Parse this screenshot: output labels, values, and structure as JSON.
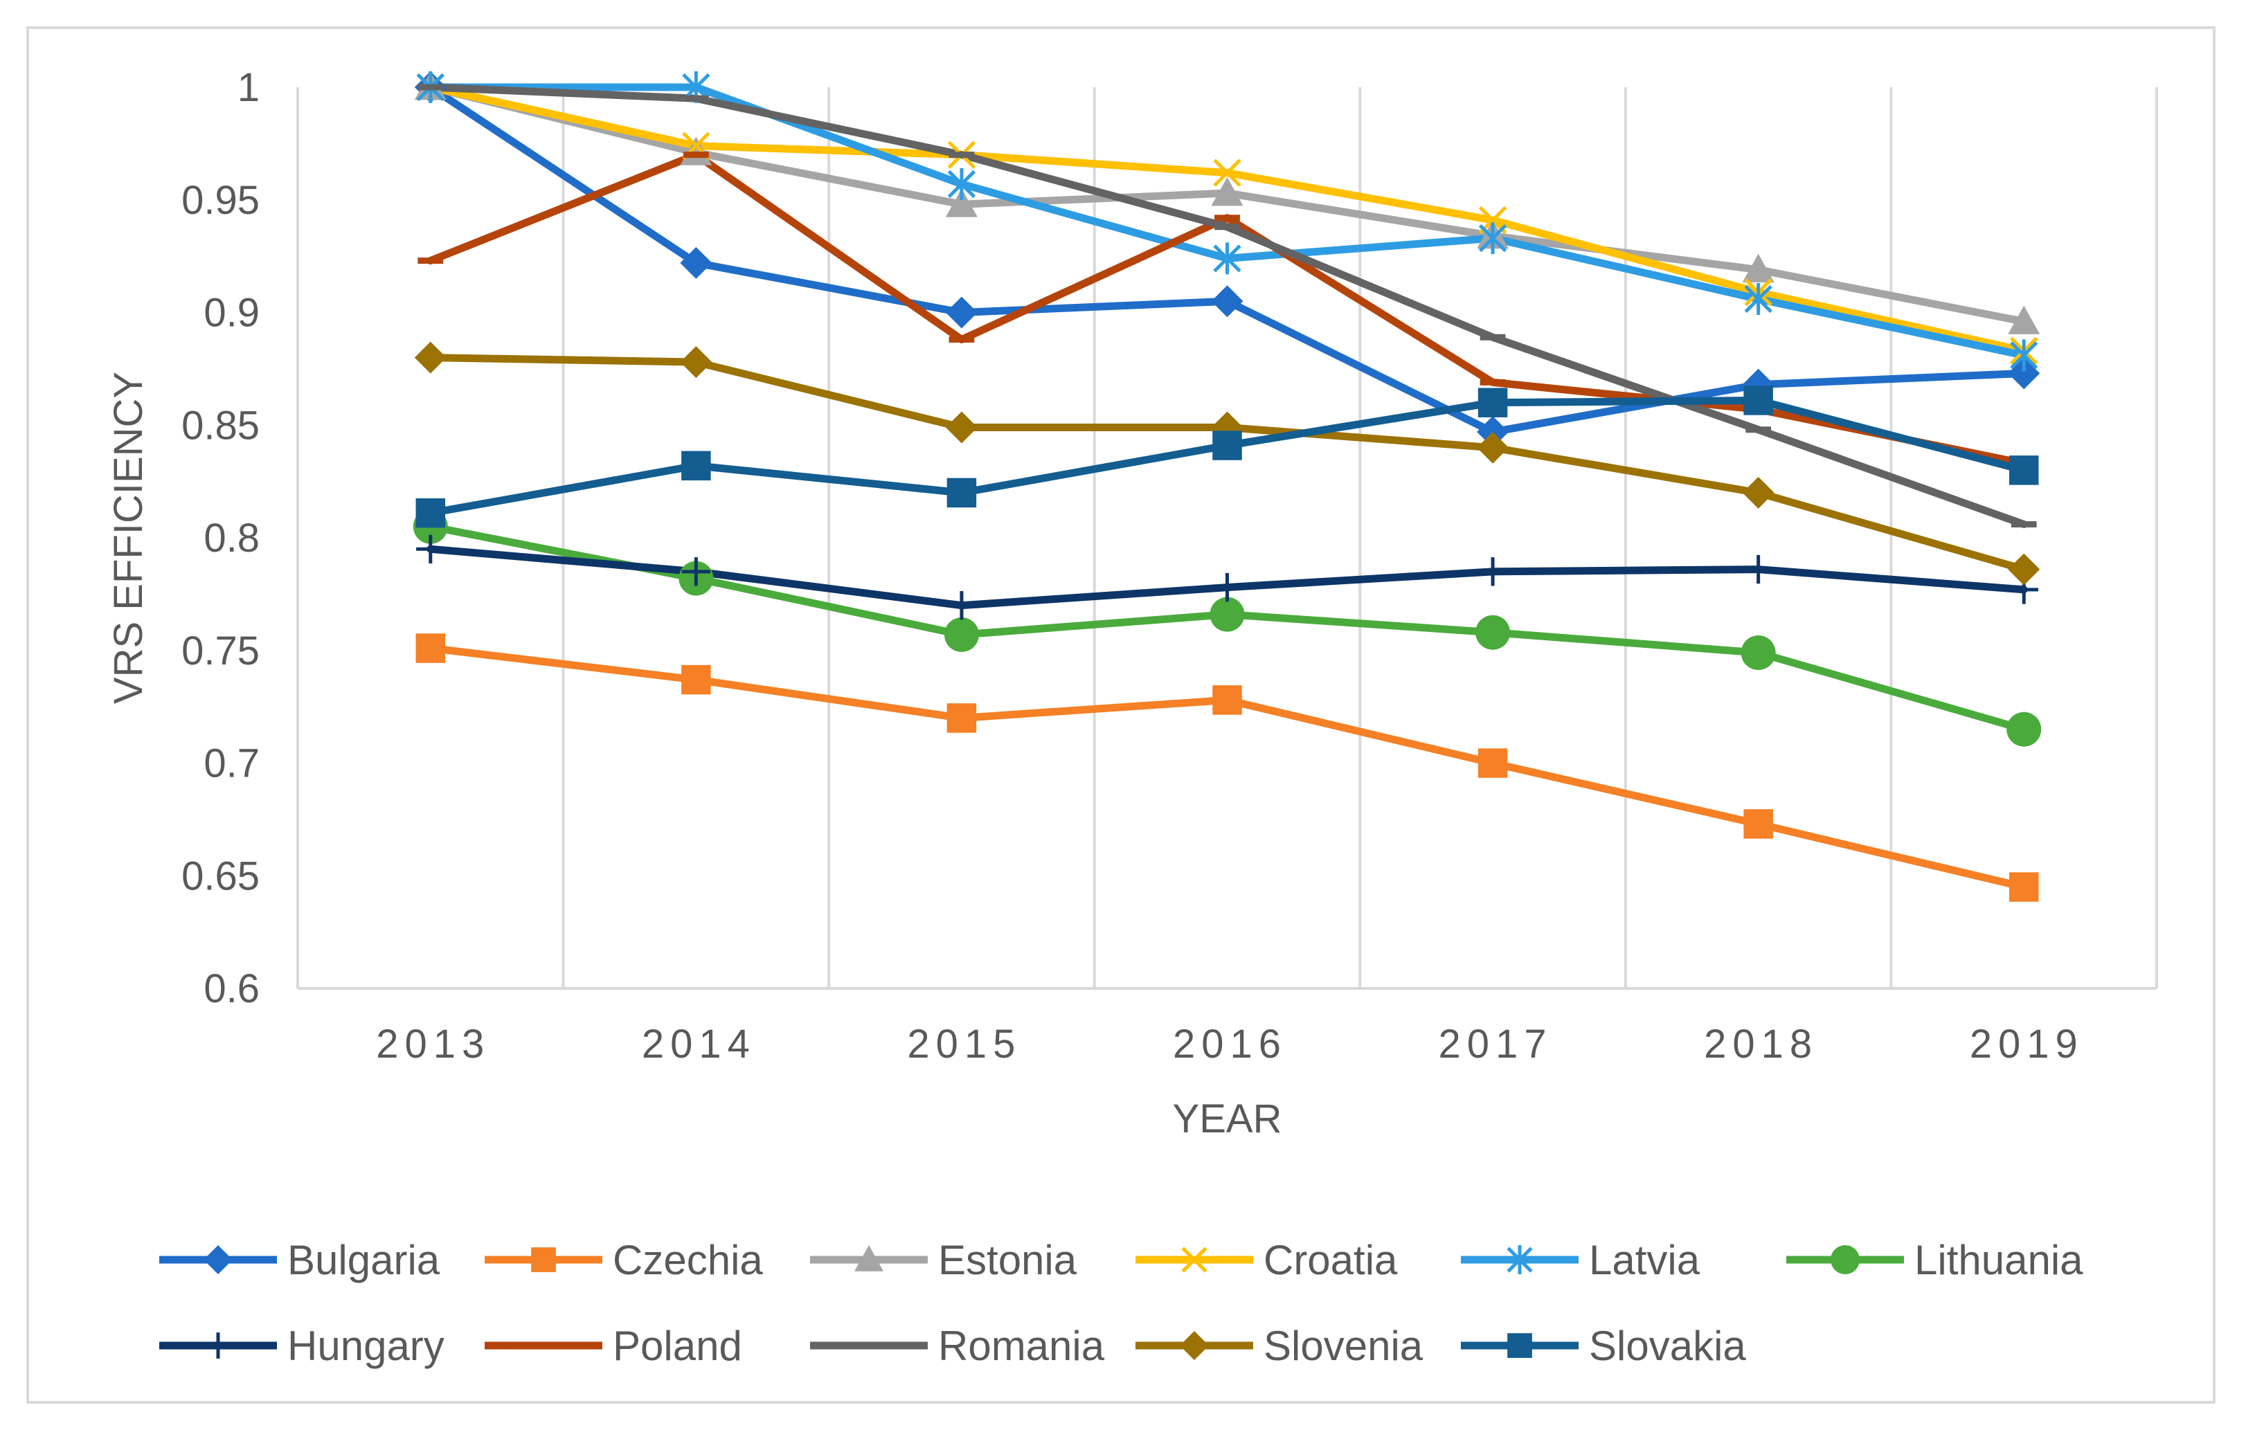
{
  "chart_data": {
    "type": "line",
    "title": "",
    "xlabel": "YEAR",
    "ylabel": "VRS EFFICIENCY",
    "ylim": [
      0.6,
      1.0
    ],
    "yticks": [
      "0.6",
      "0.65",
      "0.7",
      "0.75",
      "0.8",
      "0.85",
      "0.9",
      "0.95",
      "1"
    ],
    "categories": [
      "2013",
      "2014",
      "2015",
      "2016",
      "2017",
      "2018",
      "2019"
    ],
    "grid": "vertical",
    "legend_position": "bottom",
    "series": [
      {
        "name": "Bulgaria",
        "color": "#1f6dc8",
        "marker": "diamond",
        "values": [
          1.0,
          0.922,
          0.9,
          0.905,
          0.847,
          0.868,
          0.873
        ]
      },
      {
        "name": "Czechia",
        "color": "#f58025",
        "marker": "square",
        "values": [
          0.751,
          0.737,
          0.72,
          0.728,
          0.7,
          0.673,
          0.645
        ]
      },
      {
        "name": "Estonia",
        "color": "#a5a5a5",
        "marker": "triangle",
        "values": [
          1.0,
          0.971,
          0.948,
          0.953,
          0.934,
          0.919,
          0.896
        ]
      },
      {
        "name": "Croatia",
        "color": "#ffc000",
        "marker": "x",
        "values": [
          1.0,
          0.974,
          0.97,
          0.962,
          0.941,
          0.909,
          0.883
        ]
      },
      {
        "name": "Latvia",
        "color": "#2e9ce3",
        "marker": "asterisk",
        "values": [
          1.0,
          1.0,
          0.957,
          0.924,
          0.933,
          0.906,
          0.881
        ]
      },
      {
        "name": "Lithuania",
        "color": "#4aab3c",
        "marker": "circle",
        "values": [
          0.805,
          0.782,
          0.757,
          0.766,
          0.758,
          0.749,
          0.715
        ]
      },
      {
        "name": "Hungary",
        "color": "#0e3567",
        "marker": "plus",
        "values": [
          0.795,
          0.785,
          0.77,
          0.778,
          0.785,
          0.786,
          0.777
        ]
      },
      {
        "name": "Poland",
        "color": "#b5440b",
        "marker": "dash",
        "values": [
          0.923,
          0.97,
          0.888,
          0.942,
          0.869,
          0.857,
          0.833
        ]
      },
      {
        "name": "Romania",
        "color": "#636363",
        "marker": "dash",
        "values": [
          1.0,
          0.995,
          0.97,
          0.938,
          0.889,
          0.848,
          0.806
        ]
      },
      {
        "name": "Slovenia",
        "color": "#9b7203",
        "marker": "diamond",
        "values": [
          0.88,
          0.878,
          0.849,
          0.849,
          0.84,
          0.82,
          0.786
        ]
      },
      {
        "name": "Slovakia",
        "color": "#135d91",
        "marker": "square",
        "values": [
          0.811,
          0.832,
          0.82,
          0.841,
          0.86,
          0.861,
          0.83
        ]
      }
    ]
  }
}
